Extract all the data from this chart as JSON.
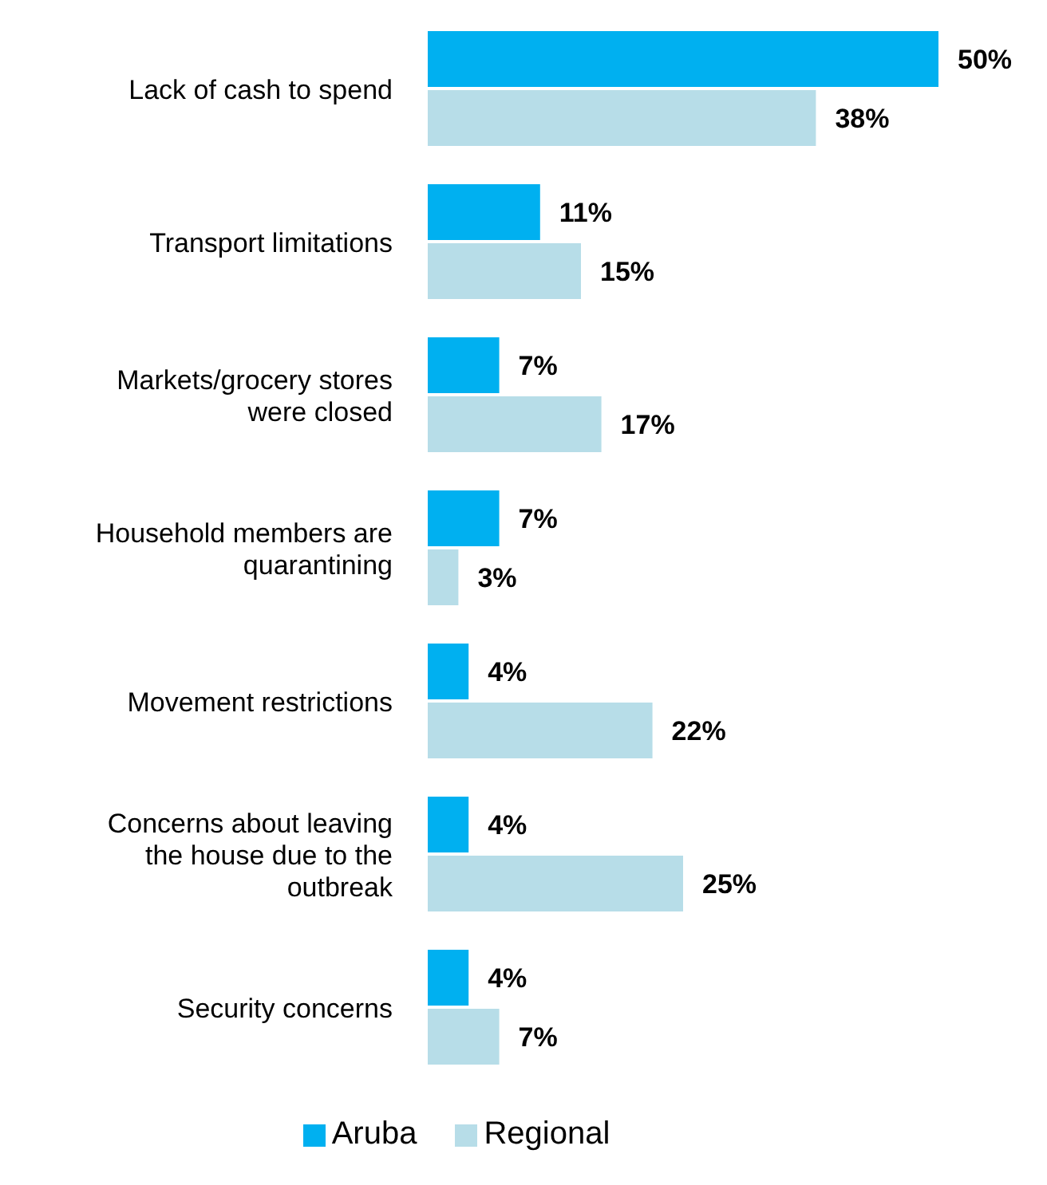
{
  "chart_data": {
    "type": "bar",
    "orientation": "horizontal",
    "categories": [
      "Lack of cash to spend",
      "Transport limitations",
      "Markets/grocery stores were closed",
      "Household members are quarantining",
      "Movement restrictions",
      "Concerns about leaving the house due to the outbreak",
      "Security concerns"
    ],
    "series": [
      {
        "name": "Aruba",
        "color": "#00b0f0",
        "values": [
          50,
          11,
          7,
          7,
          4,
          4,
          4
        ],
        "value_labels": [
          "50%",
          "11%",
          "7%",
          "7%",
          "4%",
          "4%",
          "4%"
        ]
      },
      {
        "name": "Regional",
        "color": "#b7dde8",
        "values": [
          38,
          15,
          17,
          3,
          22,
          25,
          7
        ],
        "value_labels": [
          "38%",
          "15%",
          "17%",
          "3%",
          "22%",
          "25%",
          "7%"
        ]
      }
    ],
    "legend": "bottom"
  }
}
